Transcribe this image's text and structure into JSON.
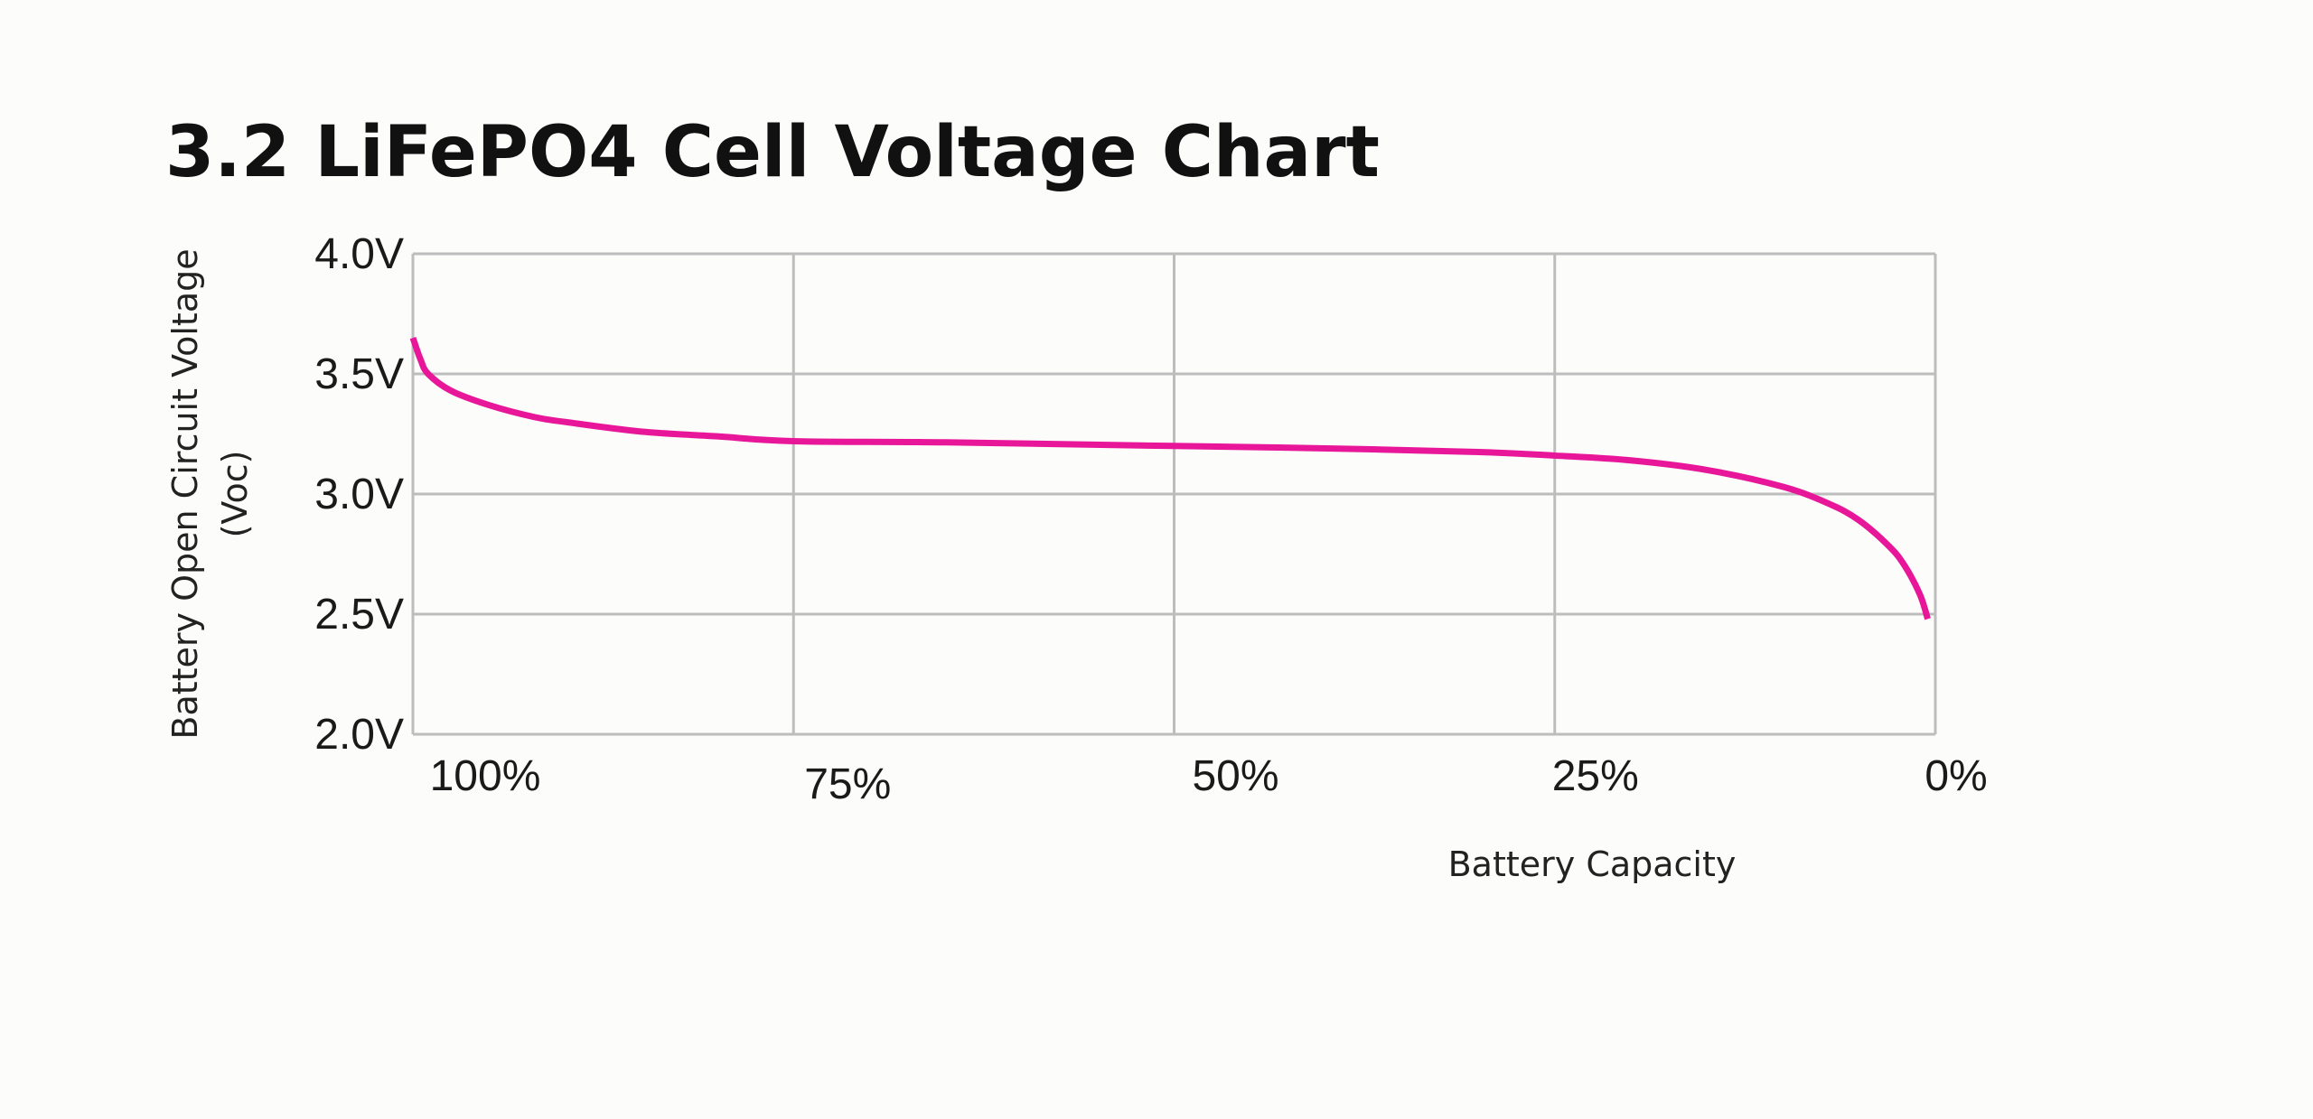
{
  "chart_data": {
    "type": "line",
    "title": "3.2 LiFePO4 Cell Voltage Chart",
    "xlabel": "Battery Capacity",
    "ylabel": [
      "Battery Open Circuit Voltage",
      "(Voc)"
    ],
    "xlim": [
      100,
      0
    ],
    "ylim": [
      2.0,
      4.0
    ],
    "x_reversed": true,
    "grid": true,
    "x_ticks": [
      100,
      75,
      50,
      25,
      0
    ],
    "x_tick_labels": [
      "100%",
      "75%",
      "50%",
      "25%",
      "0%"
    ],
    "y_ticks": [
      4.0,
      3.5,
      3.0,
      2.5,
      2.0
    ],
    "y_tick_labels": [
      "4.0V",
      "3.5V",
      "3.0V",
      "2.5V",
      "2.0V"
    ],
    "series": [
      {
        "color": "#e8179a",
        "x": [
          100,
          99.5,
          99,
          97.5,
          95,
          92,
          90,
          85,
          80,
          75,
          65,
          50,
          40,
          30,
          25,
          20,
          15,
          10,
          7,
          5,
          3,
          2,
          1,
          0.5
        ],
        "y": [
          3.65,
          3.56,
          3.5,
          3.43,
          3.37,
          3.32,
          3.3,
          3.26,
          3.24,
          3.22,
          3.215,
          3.2,
          3.19,
          3.175,
          3.16,
          3.14,
          3.1,
          3.03,
          2.96,
          2.89,
          2.78,
          2.7,
          2.58,
          2.48
        ]
      }
    ]
  }
}
